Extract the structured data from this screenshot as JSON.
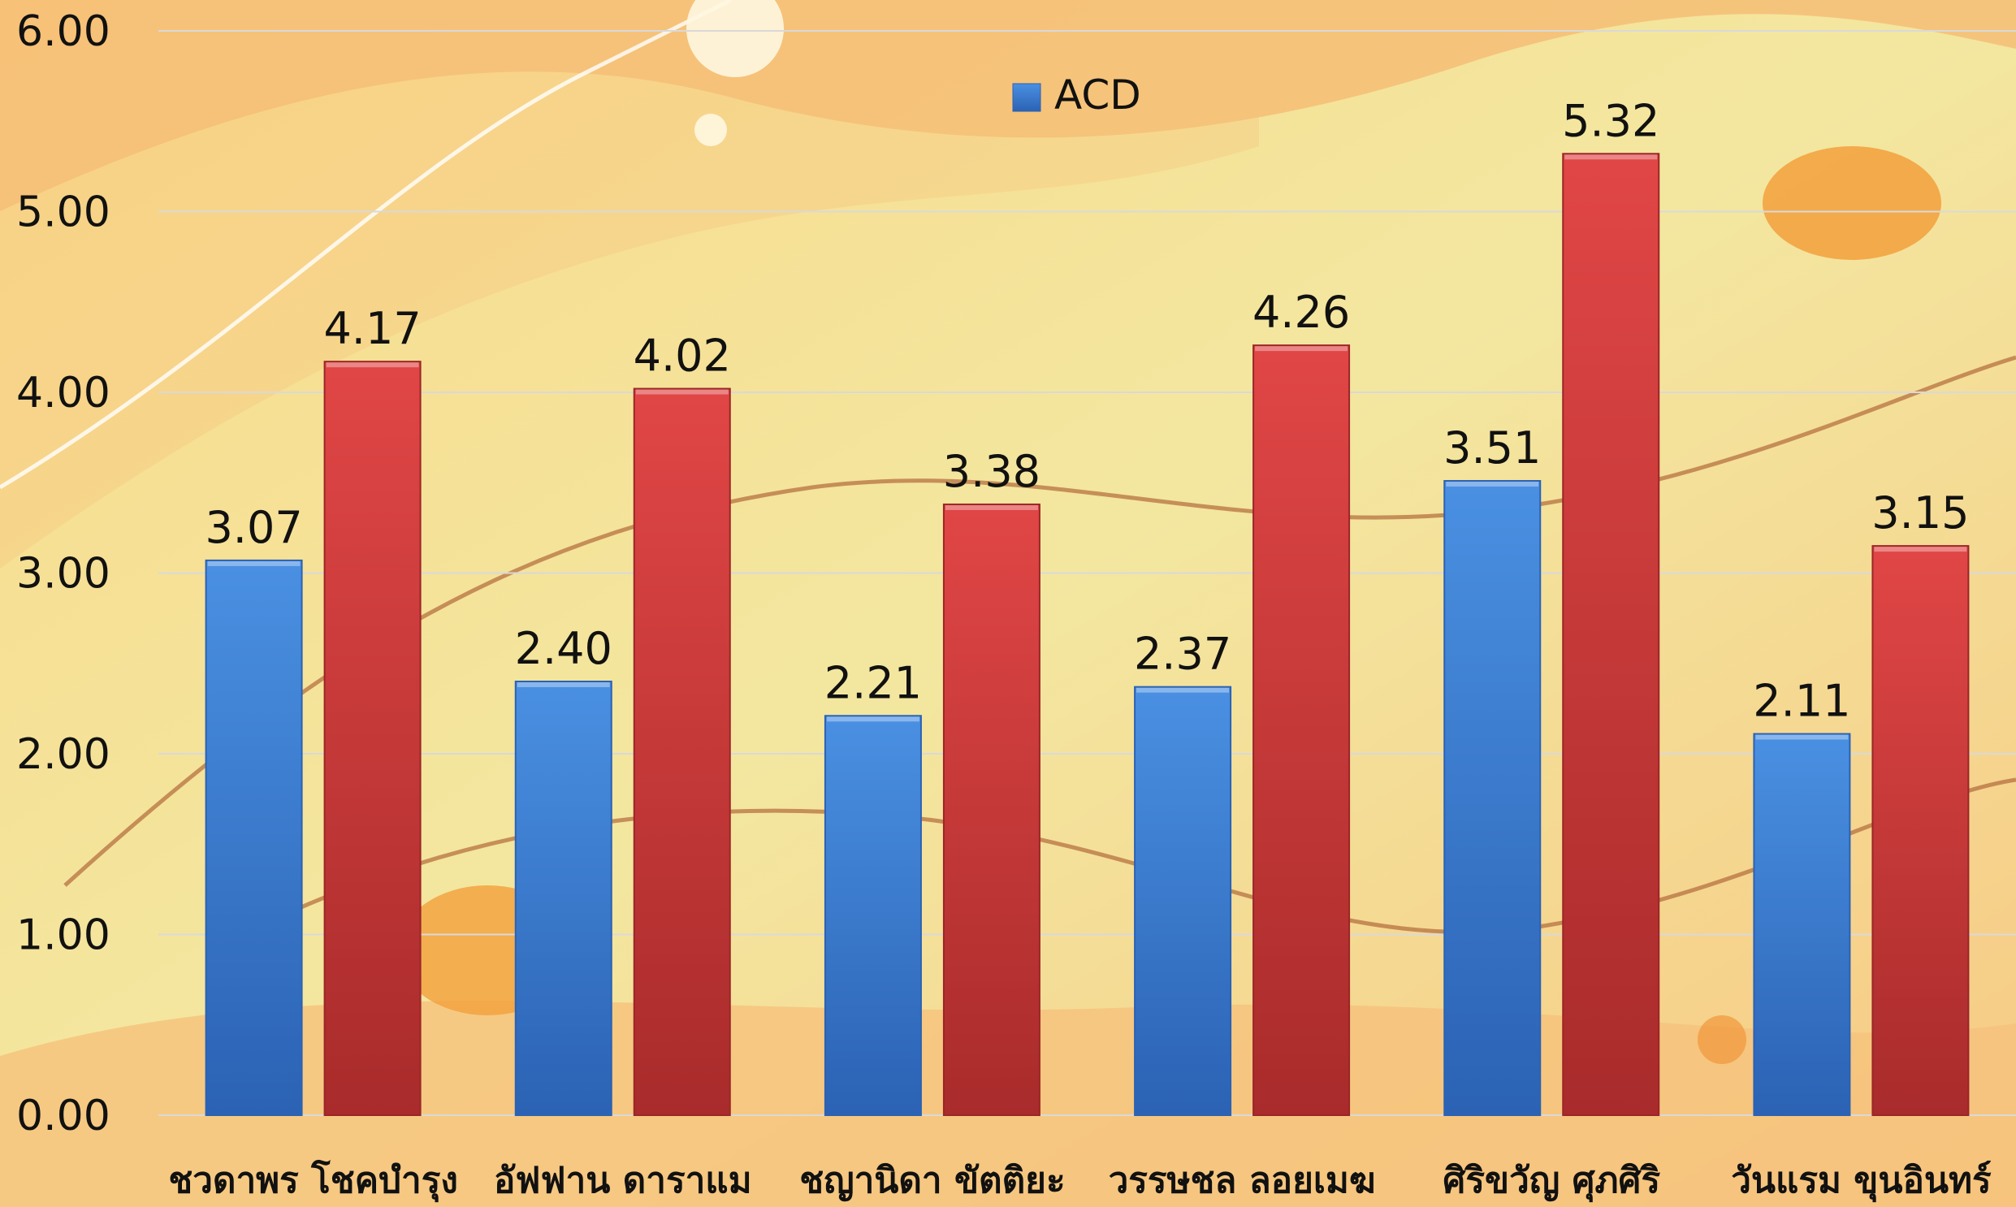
{
  "chart_data": {
    "type": "bar",
    "title": "",
    "xlabel": "",
    "ylabel": "",
    "ylim": [
      0,
      6
    ],
    "y_ticks": [
      "0.00",
      "1.00",
      "2.00",
      "3.00",
      "4.00",
      "5.00",
      "6.00"
    ],
    "grid": true,
    "legend_position": "top-center",
    "categories": [
      "ชวดาพร โชคบำรุง",
      "อัฟฟาน ดาราแม",
      "ชญานิดา ขัตติยะ",
      "วรรษชล ลอยเมฆ",
      "ศิริขวัญ ศุภศิริ",
      "วันแรม ขุนอินทร์"
    ],
    "series": [
      {
        "name": "ACD",
        "color": "#3b7fd6",
        "values": [
          3.07,
          2.4,
          2.21,
          2.37,
          3.51,
          2.11
        ],
        "labels": [
          "3.07",
          "2.40",
          "2.21",
          "2.37",
          "3.51",
          "2.11"
        ]
      },
      {
        "color": "#d63b3b",
        "values": [
          4.17,
          4.02,
          3.38,
          4.26,
          5.32,
          3.15
        ],
        "labels": [
          "4.17",
          "4.02",
          "3.38",
          "4.26",
          "5.32",
          "3.15"
        ]
      }
    ]
  }
}
